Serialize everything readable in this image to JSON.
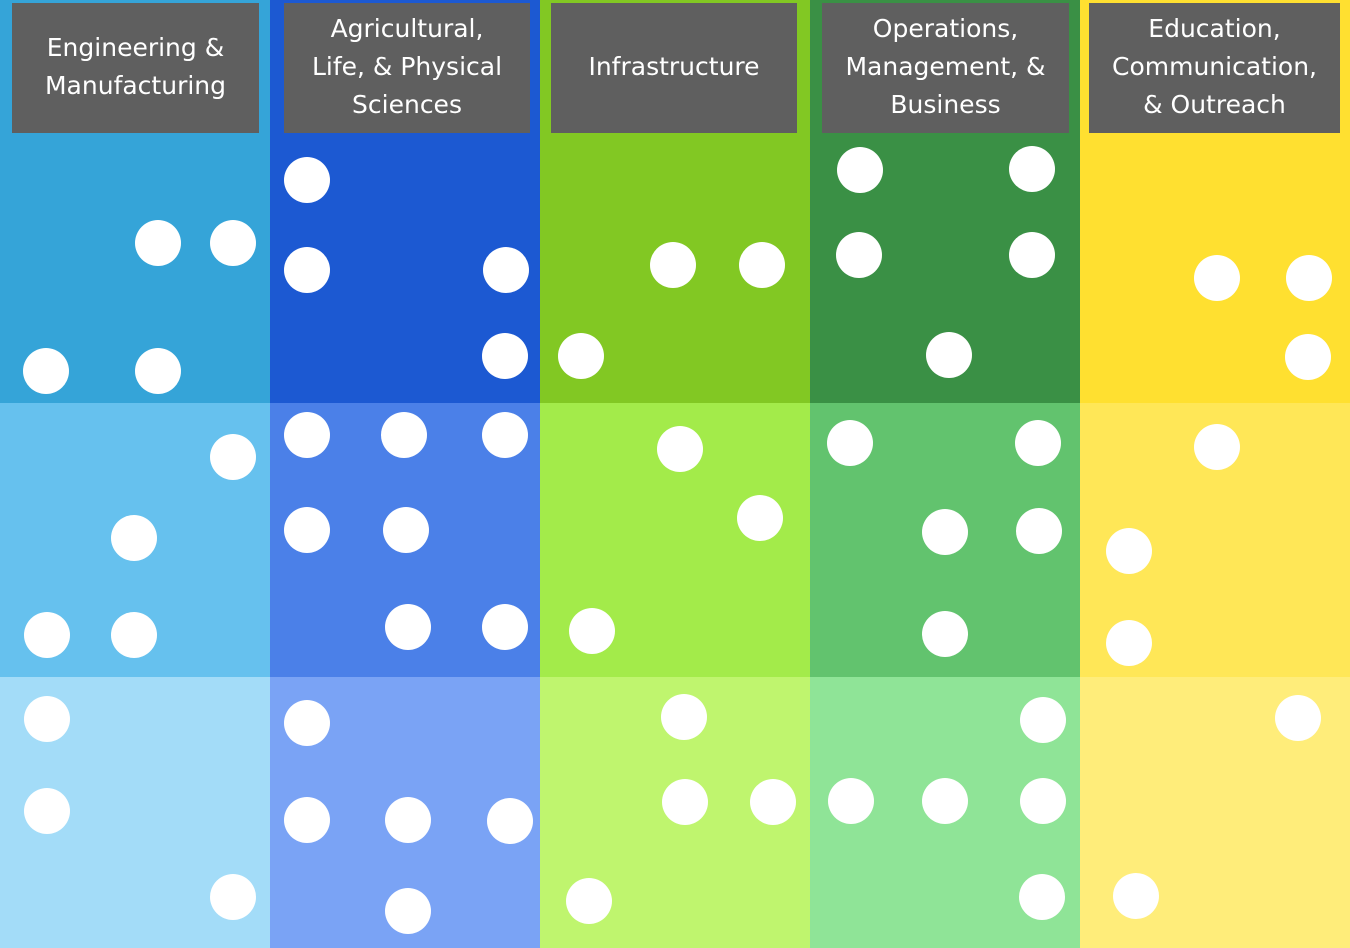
{
  "columns": [
    {
      "label": [
        "Engineering &",
        "Manufacturing"
      ]
    },
    {
      "label": [
        "Agricultural,",
        "Life, & Physical",
        "Sciences"
      ]
    },
    {
      "label": [
        "Infrastructure"
      ]
    },
    {
      "label": [
        "Operations,",
        "Management, &",
        "Business"
      ]
    },
    {
      "label": [
        "Education,",
        "Communication,",
        "& Outreach"
      ]
    }
  ]
}
